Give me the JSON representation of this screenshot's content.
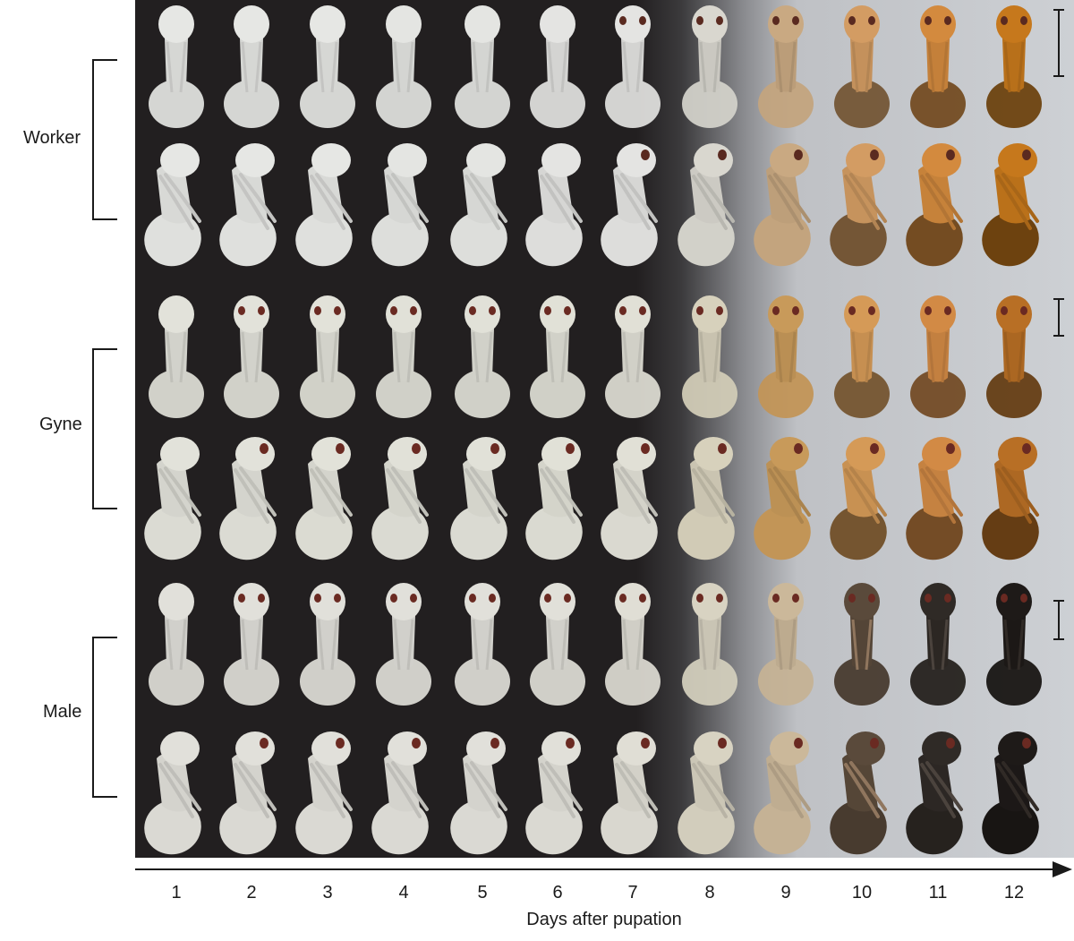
{
  "figure": {
    "x_axis_title": "Days after pupation",
    "days": [
      "1",
      "2",
      "3",
      "4",
      "5",
      "6",
      "7",
      "8",
      "9",
      "10",
      "11",
      "12"
    ],
    "castes": [
      {
        "label": "Worker",
        "rows": [
          "front",
          "side"
        ]
      },
      {
        "label": "Gyne",
        "rows": [
          "front",
          "side"
        ]
      },
      {
        "label": "Male",
        "rows": [
          "front",
          "side"
        ]
      }
    ],
    "background_colors": [
      "#221f20",
      "#cdd0d4"
    ],
    "pupa_colors_by_day": {
      "worker": [
        "#e6e7e4",
        "#e6e7e4",
        "#e6e7e4",
        "#e4e5e2",
        "#e4e5e2",
        "#e4e4e2",
        "#e4e4e2",
        "#d9d7cf",
        "#c9a982",
        "#d39c63",
        "#d38a3e",
        "#c6781c"
      ],
      "gyne": [
        "#e2e2da",
        "#e2e2da",
        "#e2e2d9",
        "#e1e1d8",
        "#e1e1d8",
        "#e1e1d7",
        "#e1e0d6",
        "#d7d1bc",
        "#c89a5a",
        "#d59a57",
        "#d28a45",
        "#b86f25"
      ],
      "male": [
        "#e1e0da",
        "#e1e0da",
        "#e1e0da",
        "#e1e0da",
        "#e1e0da",
        "#e1e0d9",
        "#e0ded5",
        "#d8d3c2",
        "#cbb89a",
        "#5a4a3b",
        "#2f2a26",
        "#1e1a18"
      ]
    }
  }
}
